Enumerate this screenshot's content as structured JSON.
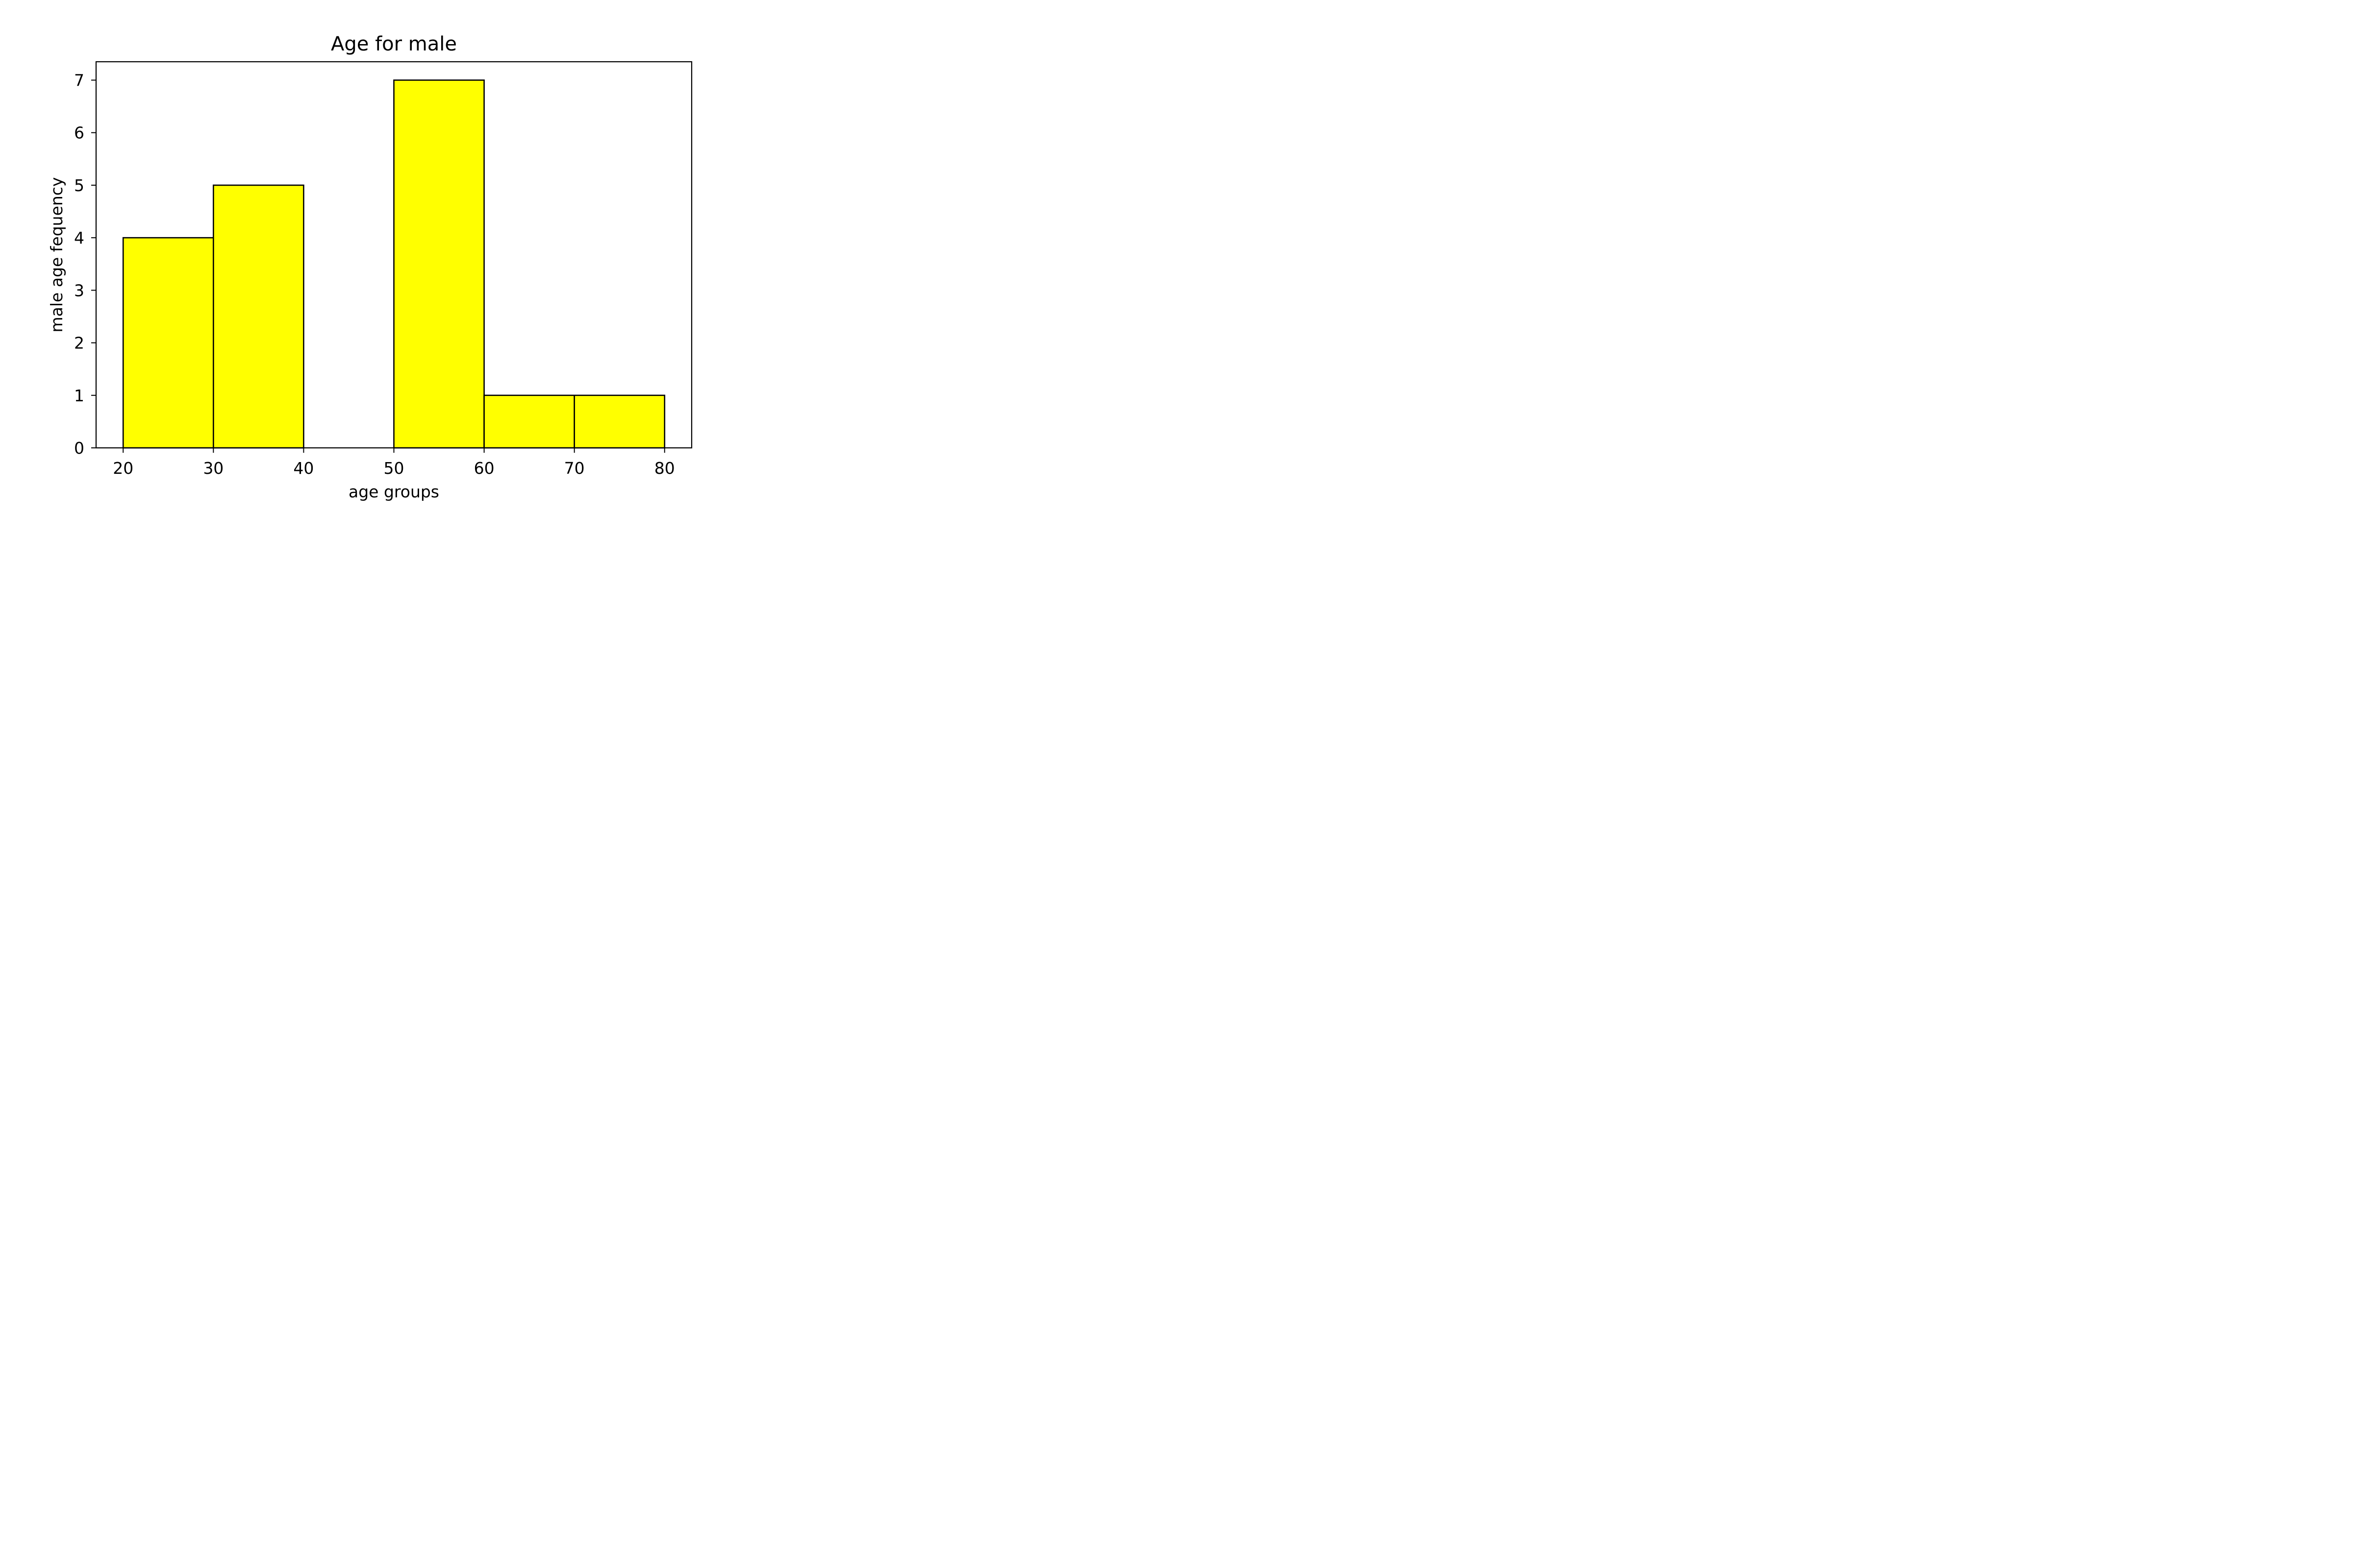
{
  "chart_data": {
    "type": "bar",
    "title": "Age for male",
    "xlabel": "age groups",
    "ylabel": "male age fequency",
    "bins": [
      {
        "start": 20,
        "end": 30,
        "value": 4
      },
      {
        "start": 30,
        "end": 40,
        "value": 5
      },
      {
        "start": 40,
        "end": 50,
        "value": 0
      },
      {
        "start": 50,
        "end": 60,
        "value": 7
      },
      {
        "start": 60,
        "end": 70,
        "value": 1
      },
      {
        "start": 70,
        "end": 80,
        "value": 1
      }
    ],
    "xticks": [
      20,
      30,
      40,
      50,
      60,
      70,
      80
    ],
    "yticks": [
      0,
      1,
      2,
      3,
      4,
      5,
      6,
      7
    ],
    "xlim": [
      17,
      83
    ],
    "ylim": [
      0,
      7.35
    ],
    "grid": false,
    "colors": {
      "bar_fill": "#ffff00",
      "bar_edge": "#000000",
      "axes": "#000000",
      "background": "#ffffff"
    }
  }
}
